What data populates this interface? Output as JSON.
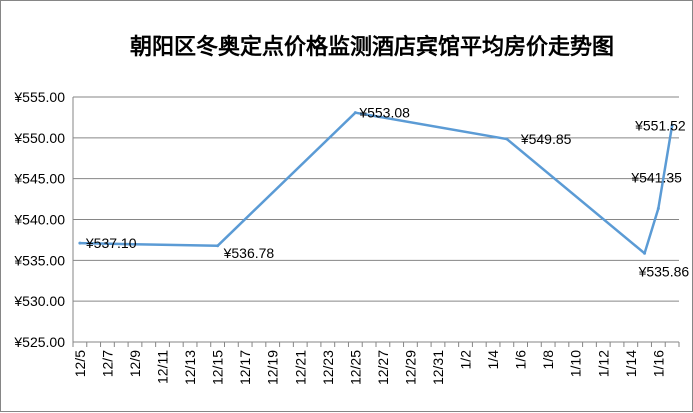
{
  "chart_data": {
    "type": "line",
    "title": "朝阳区冬奥定点价格监测酒店宾馆平均房价走势图",
    "xlabel": "",
    "ylabel": "",
    "ylim": [
      525,
      555
    ],
    "ystep": 5,
    "yticks": [
      "¥525.00",
      "¥530.00",
      "¥535.00",
      "¥540.00",
      "¥545.00",
      "¥550.00",
      "¥555.00"
    ],
    "x_ticks": [
      "12/5",
      "12/7",
      "12/9",
      "12/11",
      "12/13",
      "12/15",
      "12/17",
      "12/19",
      "12/21",
      "12/23",
      "12/25",
      "12/27",
      "12/29",
      "12/31",
      "1/2",
      "1/4",
      "1/6",
      "1/8",
      "1/10",
      "1/12",
      "1/14",
      "1/16"
    ],
    "x_start": "2021-12-05",
    "x_end": "2022-01-17",
    "grid": true,
    "line_color": "#5b9bd5",
    "series": [
      {
        "points": [
          {
            "date": "2021-12-05",
            "value": 537.1,
            "label": "¥537.10"
          },
          {
            "date": "2021-12-15",
            "value": 536.78,
            "label": "¥536.78"
          },
          {
            "date": "2021-12-25",
            "value": 553.08,
            "label": "¥553.08"
          },
          {
            "date": "2022-01-05",
            "value": 549.85,
            "label": "¥549.85"
          },
          {
            "date": "2022-01-15",
            "value": 535.86,
            "label": "¥535.86"
          },
          {
            "date": "2022-01-16",
            "value": 541.35,
            "label": "¥541.35"
          },
          {
            "date": "2022-01-17",
            "value": 551.52,
            "label": "¥551.52"
          }
        ]
      }
    ]
  }
}
